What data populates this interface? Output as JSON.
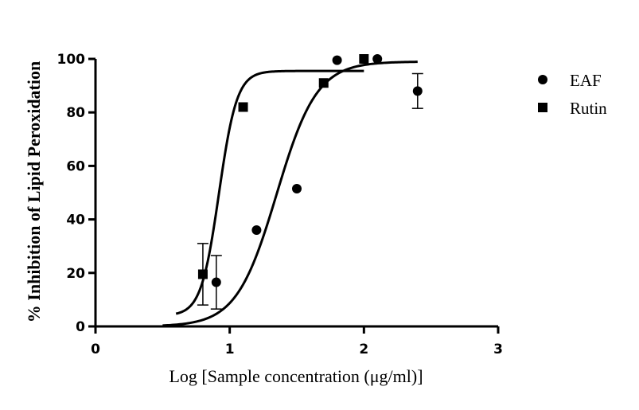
{
  "chart_data": {
    "type": "scatter",
    "title": "",
    "xlabel": "Log [Sample concentration (μg/ml)]",
    "ylabel": "% Inhibition of Lipid Peroxidation",
    "xlim": [
      0,
      3
    ],
    "ylim": [
      0,
      100
    ],
    "xticks": [
      "0",
      "1",
      "2",
      "3"
    ],
    "yticks": [
      "0",
      "20",
      "40",
      "60",
      "80",
      "100"
    ],
    "grid": false,
    "legend_position": "right",
    "series": [
      {
        "name": "EAF",
        "marker": "circle",
        "points": [
          {
            "x": 0.9,
            "y": 16.5,
            "err": 10
          },
          {
            "x": 1.2,
            "y": 36
          },
          {
            "x": 1.5,
            "y": 51.5
          },
          {
            "x": 1.8,
            "y": 99.5
          },
          {
            "x": 2.1,
            "y": 100
          },
          {
            "x": 2.4,
            "y": 88,
            "err": 6.5
          }
        ],
        "fit": {
          "bottom": 0,
          "top": 99,
          "logEC50": 1.35,
          "hill": 2.9,
          "x_range": [
            0.5,
            2.4
          ]
        }
      },
      {
        "name": "Rutin",
        "marker": "square",
        "points": [
          {
            "x": 0.8,
            "y": 19.5,
            "err": 11.5
          },
          {
            "x": 1.1,
            "y": 82
          },
          {
            "x": 1.7,
            "y": 91
          },
          {
            "x": 2.0,
            "y": 100
          }
        ],
        "fit": {
          "bottom": 4,
          "top": 95.5,
          "logEC50": 0.92,
          "hill": 6.5,
          "x_range": [
            0.6,
            2.0
          ]
        }
      }
    ]
  }
}
